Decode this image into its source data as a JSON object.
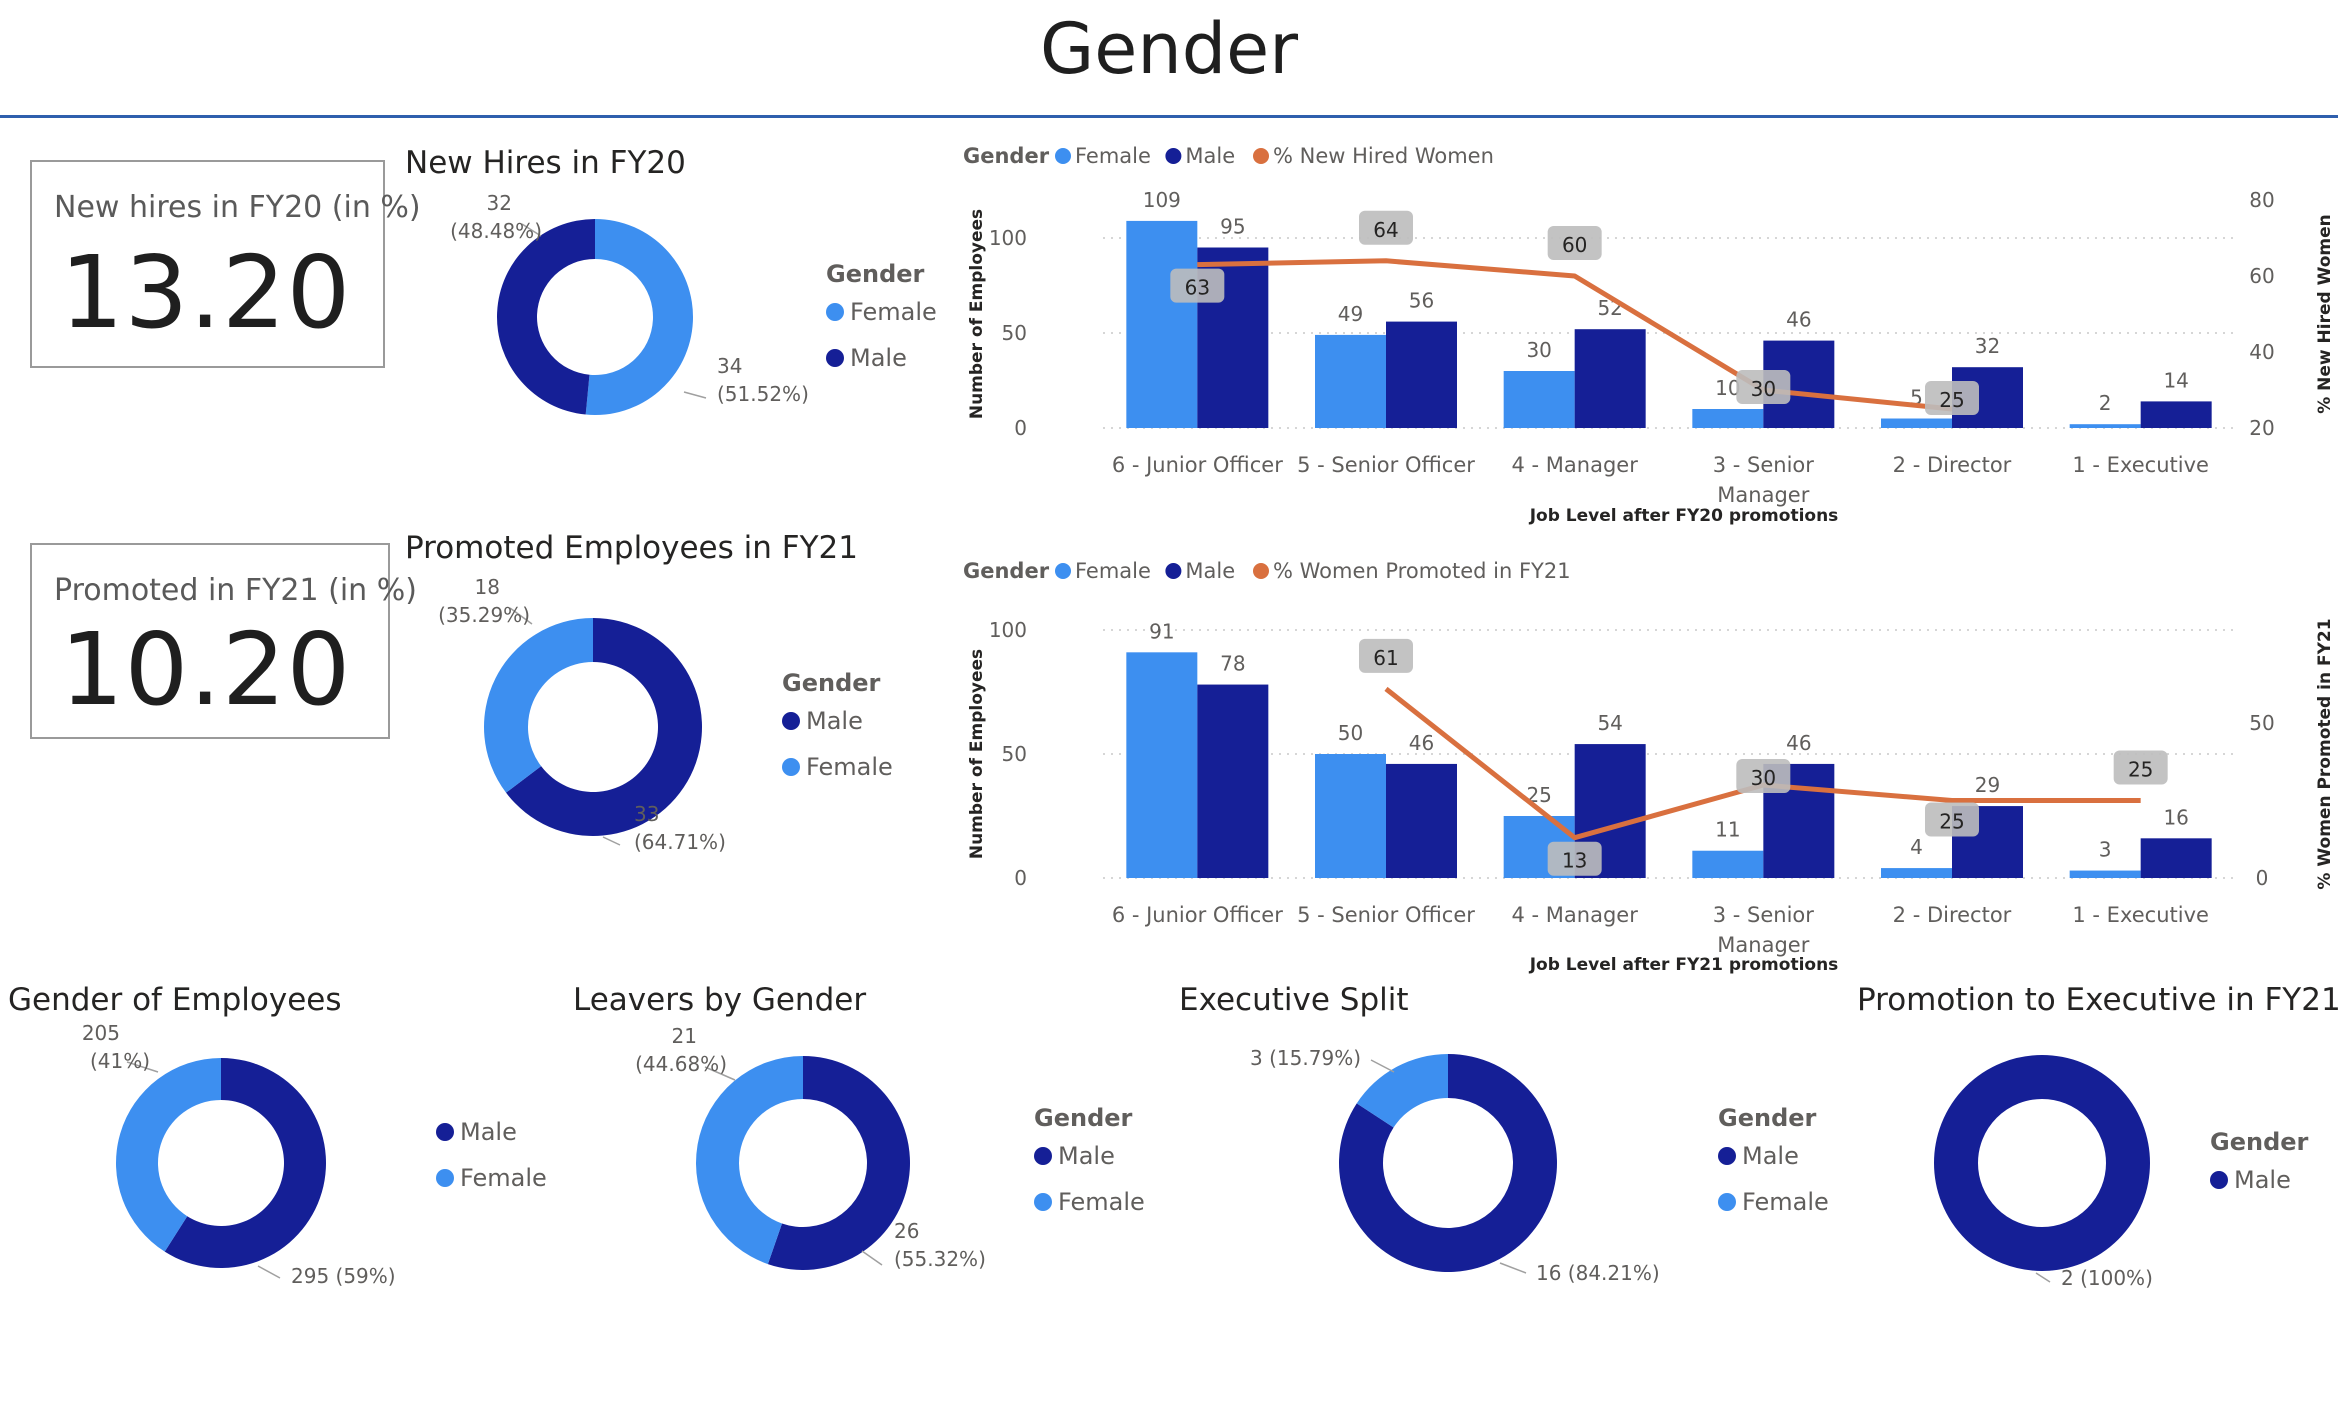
{
  "page": {
    "title": "Gender"
  },
  "colors": {
    "female": "#3d8ff0",
    "male": "#151f96",
    "line": "#d9703f",
    "title_rule": "#2f5fad"
  },
  "kpis": [
    {
      "label": "New hires in FY20 (in %)",
      "value": "13.20"
    },
    {
      "label": "Promoted in FY21 (in %)",
      "value": "10.20"
    }
  ],
  "chart_data": [
    {
      "type": "pie",
      "title": "New Hires in FY20",
      "legend_title": "Gender",
      "legend": [
        "Female",
        "Male"
      ],
      "slices": [
        {
          "label": "Female",
          "value": 34,
          "text": "34",
          "pct": "(51.52%)",
          "color": "#3d8ff0"
        },
        {
          "label": "Male",
          "value": 32,
          "text": "32",
          "pct": "(48.48%)",
          "color": "#151f96"
        }
      ]
    },
    {
      "type": "pie",
      "title": "Promoted Employees in FY21",
      "legend_title": "Gender",
      "legend": [
        "Male",
        "Female"
      ],
      "slices": [
        {
          "label": "Male",
          "value": 33,
          "text": "33",
          "pct": "(64.71%)",
          "color": "#151f96"
        },
        {
          "label": "Female",
          "value": 18,
          "text": "18",
          "pct": "(35.29%)",
          "color": "#3d8ff0"
        }
      ]
    },
    {
      "type": "pie",
      "title": "Gender of Employees",
      "legend_title": "",
      "legend": [
        "Male",
        "Female"
      ],
      "slices": [
        {
          "label": "Male",
          "value": 295,
          "text": "295 (59%)",
          "pct": "",
          "color": "#151f96"
        },
        {
          "label": "Female",
          "value": 205,
          "text": "205",
          "pct": "(41%)",
          "color": "#3d8ff0"
        }
      ]
    },
    {
      "type": "pie",
      "title": "Leavers by Gender",
      "legend_title": "Gender",
      "legend": [
        "Male",
        "Female"
      ],
      "slices": [
        {
          "label": "Male",
          "value": 26,
          "text": "26",
          "pct": "(55.32%)",
          "color": "#151f96"
        },
        {
          "label": "Female",
          "value": 21,
          "text": "21",
          "pct": "(44.68%)",
          "color": "#3d8ff0"
        }
      ]
    },
    {
      "type": "pie",
      "title": "Executive Split",
      "legend_title": "Gender",
      "legend": [
        "Male",
        "Female"
      ],
      "slices": [
        {
          "label": "Male",
          "value": 16,
          "text": "16 (84.21%)",
          "pct": "",
          "color": "#151f96"
        },
        {
          "label": "Female",
          "value": 3,
          "text": "3 (15.79%)",
          "pct": "",
          "color": "#3d8ff0"
        }
      ]
    },
    {
      "type": "pie",
      "title": "Promotion to Executive in FY21",
      "legend_title": "Gender",
      "legend": [
        "Male"
      ],
      "slices": [
        {
          "label": "Male",
          "value": 2,
          "text": "2 (100%)",
          "pct": "",
          "color": "#151f96"
        }
      ]
    },
    {
      "type": "bar",
      "title": "",
      "legend_title": "Gender",
      "legend": [
        {
          "name": "Female",
          "kind": "dot",
          "color": "#3d8ff0"
        },
        {
          "name": "Male",
          "kind": "dot",
          "color": "#151f96"
        },
        {
          "name": "% New Hired Women",
          "kind": "dot",
          "color": "#d9703f"
        }
      ],
      "categories": [
        "6 - Junior Officer",
        "5 - Senior Officer",
        "4 - Manager",
        "3 - Senior Manager",
        "2 - Director",
        "1 - Executive"
      ],
      "category_lines": [
        [
          "6 - Junior Officer"
        ],
        [
          "5 - Senior Officer"
        ],
        [
          "4 - Manager"
        ],
        [
          "3 - Senior",
          "Manager"
        ],
        [
          "2 - Director"
        ],
        [
          "1 - Executive"
        ]
      ],
      "series": [
        {
          "name": "Female",
          "values": [
            109,
            49,
            30,
            10,
            5,
            2
          ]
        },
        {
          "name": "Male",
          "values": [
            95,
            56,
            52,
            46,
            32,
            14
          ]
        }
      ],
      "line_series": {
        "name": "% New Hired Women",
        "values": [
          63,
          64,
          60,
          30,
          25
        ]
      },
      "xlabel": "Job Level after FY20 promotions",
      "ylabel": "Number of Employees",
      "y2label": "% New Hired Women",
      "ylim": [
        0,
        120
      ],
      "yticks": [
        0,
        50,
        100
      ],
      "y2lim": [
        20,
        80
      ],
      "y2ticks": [
        20,
        40,
        60,
        80
      ],
      "grid": true
    },
    {
      "type": "bar",
      "title": "",
      "legend_title": "Gender",
      "legend": [
        {
          "name": "Female",
          "kind": "dot",
          "color": "#3d8ff0"
        },
        {
          "name": "Male",
          "kind": "dot",
          "color": "#151f96"
        },
        {
          "name": "% Women Promoted in FY21",
          "kind": "dot",
          "color": "#d9703f"
        }
      ],
      "categories": [
        "6 - Junior Officer",
        "5 - Senior Officer",
        "4 - Manager",
        "3 - Senior Manager",
        "2 - Director",
        "1 - Executive"
      ],
      "category_lines": [
        [
          "6 - Junior Officer"
        ],
        [
          "5 - Senior Officer"
        ],
        [
          "4 - Manager"
        ],
        [
          "3 - Senior",
          "Manager"
        ],
        [
          "2 - Director"
        ],
        [
          "1 - Executive"
        ]
      ],
      "series": [
        {
          "name": "Female",
          "values": [
            91,
            50,
            25,
            11,
            4,
            3
          ]
        },
        {
          "name": "Male",
          "values": [
            78,
            46,
            54,
            46,
            29,
            16
          ]
        }
      ],
      "line_series": {
        "name": "% Women Promoted in FY21",
        "values": [
          null,
          61,
          13,
          30,
          25,
          25
        ]
      },
      "xlabel": "Job Level after FY21 promotions",
      "ylabel": "Number of Employees",
      "y2label": "% Women Promoted in FY21",
      "ylim": [
        0,
        100
      ],
      "yticks": [
        0,
        50,
        100
      ],
      "y2lim": [
        0,
        80
      ],
      "y2ticks": [
        0,
        50
      ],
      "grid": true
    }
  ]
}
